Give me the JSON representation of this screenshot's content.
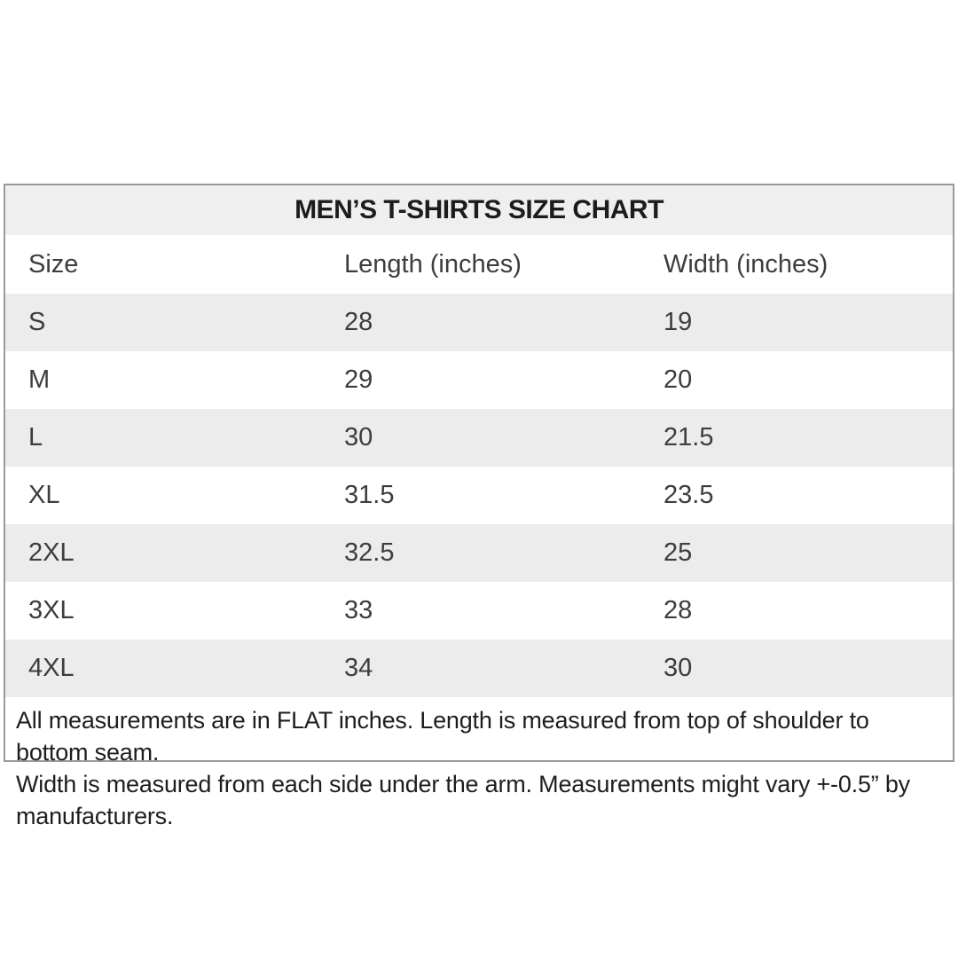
{
  "colors": {
    "background": "#ffffff",
    "stripe": "#ececec",
    "title_band": "#efefef",
    "border": "#9a9a9a",
    "text": "#3d3d3d",
    "title_text": "#1c1c1c",
    "footnote_text": "#1e1e1e"
  },
  "chart_data": {
    "type": "table",
    "title": "MEN’S T-SHIRTS SIZE CHART",
    "columns": [
      "Size",
      "Length (inches)",
      "Width (inches)"
    ],
    "rows": [
      [
        "S",
        "28",
        "19"
      ],
      [
        "M",
        "29",
        "20"
      ],
      [
        "L",
        "30",
        "21.5"
      ],
      [
        "XL",
        "31.5",
        "23.5"
      ],
      [
        "2XL",
        "32.5",
        "25"
      ],
      [
        "3XL",
        "33",
        "28"
      ],
      [
        "4XL",
        "34",
        "30"
      ]
    ],
    "footnote": [
      "All measurements are in FLAT inches. Length is measured from top of shoulder to bottom seam.",
      "Width is measured from each side under the arm. Measurements might vary +-0.5” by manufacturers."
    ]
  }
}
